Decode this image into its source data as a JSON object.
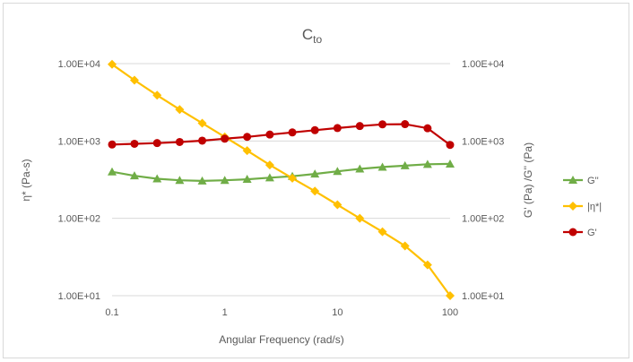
{
  "chart_data": {
    "type": "line",
    "title": {
      "main": "C",
      "sub": "to"
    },
    "xlabel": "Angular Frequency (rad/s)",
    "ylabel_left": "η* (Pa-s)",
    "ylabel_right": "G' (Pa) /G'' (Pa)",
    "xscale": "log",
    "yscale": "log",
    "xlim": [
      0.1,
      100
    ],
    "ylim": [
      10,
      10000
    ],
    "x_ticks": [
      0.1,
      1,
      10,
      100
    ],
    "x_tick_labels": [
      "0.1",
      "1",
      "10",
      "100"
    ],
    "y_ticks": [
      10,
      100,
      1000,
      10000
    ],
    "y_tick_labels_left": [
      "1.00E+01",
      "1.00E+02",
      "1.00E+03",
      "1.00E+04"
    ],
    "y_tick_labels_right": [
      "1.00E+01",
      "1.00E+02",
      "1.00E+03",
      "1.00E+04"
    ],
    "grid": "horizontal",
    "legend_position": "right",
    "x": [
      0.1,
      0.158,
      0.251,
      0.398,
      0.631,
      1,
      1.58,
      2.51,
      3.98,
      6.31,
      10,
      15.8,
      25.1,
      39.8,
      63.1,
      100
    ],
    "series": [
      {
        "name": "G''",
        "marker": "triangle",
        "color": "#70ad47",
        "values": [
          400,
          355,
          325,
          310,
          305,
          310,
          320,
          335,
          350,
          375,
          405,
          435,
          460,
          480,
          500,
          505
        ]
      },
      {
        "name": "|η*|",
        "marker": "diamond",
        "color": "#ffc000",
        "values": [
          9800,
          6100,
          3900,
          2550,
          1700,
          1130,
          750,
          490,
          330,
          225,
          150,
          100,
          67,
          44,
          25,
          10
        ]
      },
      {
        "name": "G'",
        "marker": "circle",
        "color": "#c00000",
        "values": [
          900,
          920,
          940,
          970,
          1010,
          1070,
          1130,
          1210,
          1290,
          1380,
          1470,
          1560,
          1640,
          1650,
          1460,
          890
        ]
      }
    ]
  }
}
